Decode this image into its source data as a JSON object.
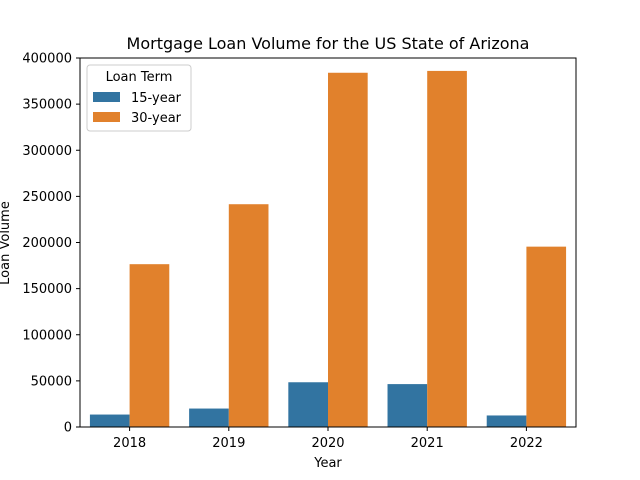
{
  "chart_data": {
    "type": "bar",
    "title": "Mortgage Loan Volume for the US State of Arizona",
    "xlabel": "Year",
    "ylabel": "Loan Volume",
    "categories": [
      "2018",
      "2019",
      "2020",
      "2021",
      "2022"
    ],
    "series": [
      {
        "name": "15-year",
        "values": [
          13500,
          20000,
          48500,
          46500,
          12500
        ],
        "color": "#3274a1"
      },
      {
        "name": "30-year",
        "values": [
          176500,
          241500,
          384000,
          386000,
          195500
        ],
        "color": "#e1812c"
      }
    ],
    "ylim": [
      0,
      400000
    ],
    "yticks": [
      0,
      50000,
      100000,
      150000,
      200000,
      250000,
      300000,
      350000,
      400000
    ],
    "grid": false,
    "legend": {
      "title": "Loan Term",
      "placement": "top-left"
    }
  }
}
